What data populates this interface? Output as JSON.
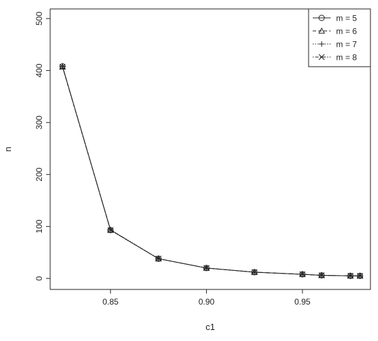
{
  "chart_data": {
    "type": "line",
    "xlabel": "c1",
    "ylabel": "n",
    "xlim": [
      0.82,
      0.984
    ],
    "ylim": [
      0,
      500
    ],
    "xticks": [
      0.85,
      0.9,
      0.95
    ],
    "xtick_labels": [
      "0.85",
      "0.90",
      "0.95"
    ],
    "yticks": [
      0,
      100,
      200,
      300,
      400,
      500
    ],
    "ytick_labels": [
      "0",
      "100",
      "200",
      "300",
      "400",
      "500"
    ],
    "grid": false,
    "legend_position": "top-right",
    "x": [
      0.825,
      0.85,
      0.875,
      0.9,
      0.925,
      0.95,
      0.96,
      0.975,
      0.98
    ],
    "series": [
      {
        "name": "m = 5",
        "marker": "circle",
        "line": "solid",
        "values": [
          408,
          93,
          38,
          20,
          12,
          8,
          6,
          5,
          5
        ]
      },
      {
        "name": "m = 6",
        "marker": "triangle",
        "line": "dashed",
        "values": [
          407,
          93,
          38,
          20,
          12,
          8,
          6,
          5,
          5
        ]
      },
      {
        "name": "m = 7",
        "marker": "plus",
        "line": "dotted",
        "values": [
          408,
          94,
          38,
          20,
          12,
          8,
          6,
          5,
          5
        ]
      },
      {
        "name": "m = 8",
        "marker": "cross",
        "line": "dotdash",
        "values": [
          407,
          93,
          38,
          20,
          12,
          8,
          6,
          5,
          5
        ]
      }
    ]
  }
}
